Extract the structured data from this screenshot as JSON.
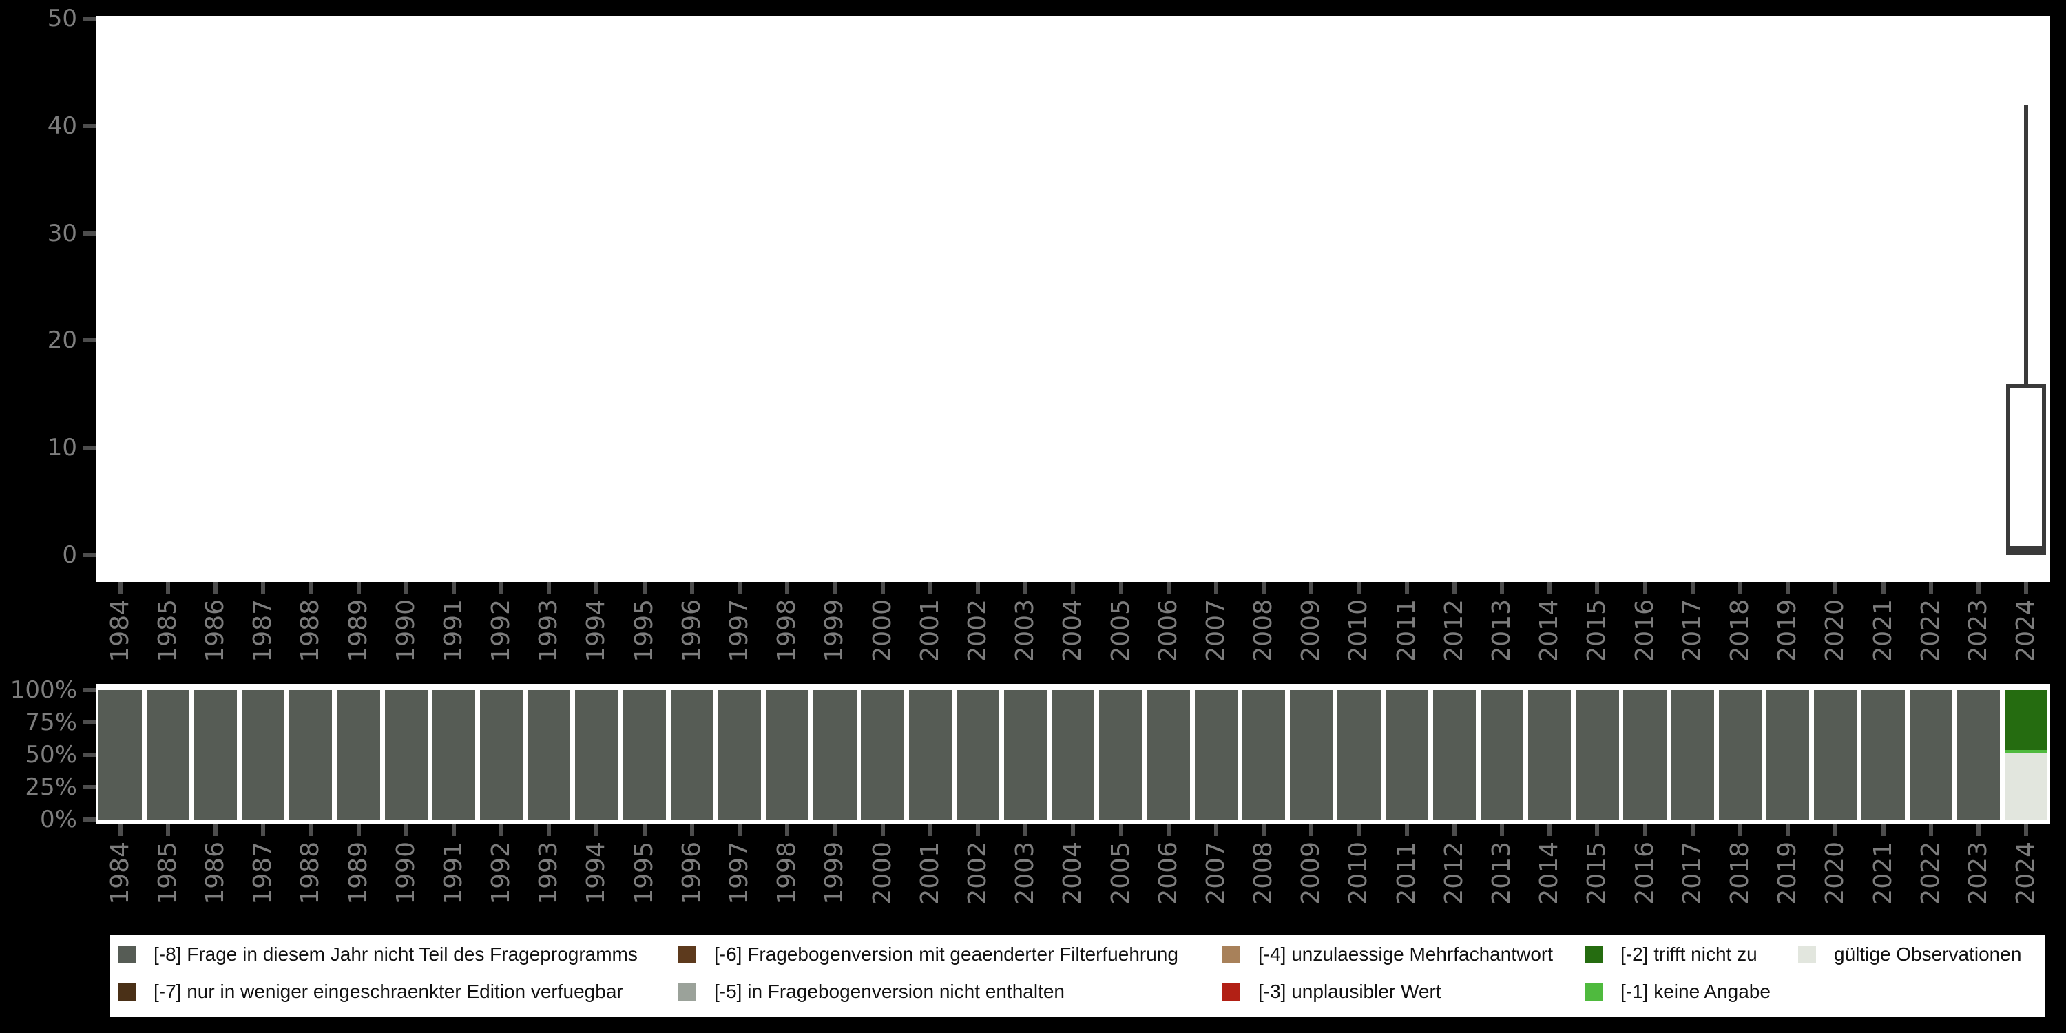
{
  "page": {
    "background": "#000000",
    "panel_background": "#ffffff"
  },
  "colors": {
    "-8": "#565c55",
    "-7": "#4a3017",
    "-6": "#5d3a1d",
    "-5": "#9ba29a",
    "-4": "#a8815a",
    "-3": "#b22015",
    "-2": "#256c10",
    "-1": "#4fba3e",
    "valid": "#e2e6de",
    "axis_label": "#7d7d7d",
    "tick_mark": "#4d4d4d",
    "box_stroke": "#3a3a3a"
  },
  "chart_data": [
    {
      "type": "boxplot",
      "title": "",
      "xlabel": "",
      "ylabel": "",
      "ylim": [
        0,
        50
      ],
      "yticks": [
        0,
        10,
        20,
        30,
        40,
        50
      ],
      "grid": false,
      "categories": [
        1984,
        1985,
        1986,
        1987,
        1988,
        1989,
        1990,
        1991,
        1992,
        1993,
        1994,
        1995,
        1996,
        1997,
        1998,
        1999,
        2000,
        2001,
        2002,
        2003,
        2004,
        2005,
        2006,
        2007,
        2008,
        2009,
        2010,
        2011,
        2012,
        2013,
        2014,
        2015,
        2016,
        2017,
        2018,
        2019,
        2020,
        2021,
        2022,
        2023,
        2024
      ],
      "boxes": [
        {
          "category": 2024,
          "min": 0,
          "q1": 0,
          "median": 0.5,
          "q3": 16,
          "max": 42
        }
      ]
    },
    {
      "type": "bar",
      "stacked": true,
      "unit": "percent",
      "title": "",
      "xlabel": "",
      "ylabel": "",
      "ylim": [
        0,
        100
      ],
      "yticks": [
        {
          "label": "0%",
          "value": 0
        },
        {
          "label": "25%",
          "value": 25
        },
        {
          "label": "50%",
          "value": 50
        },
        {
          "label": "75%",
          "value": 75
        },
        {
          "label": "100%",
          "value": 100
        }
      ],
      "categories": [
        1984,
        1985,
        1986,
        1987,
        1988,
        1989,
        1990,
        1991,
        1992,
        1993,
        1994,
        1995,
        1996,
        1997,
        1998,
        1999,
        2000,
        2001,
        2002,
        2003,
        2004,
        2005,
        2006,
        2007,
        2008,
        2009,
        2010,
        2011,
        2012,
        2013,
        2014,
        2015,
        2016,
        2017,
        2018,
        2019,
        2020,
        2021,
        2022,
        2023,
        2024
      ],
      "default_composition": [
        {
          "code": "-8",
          "pct": 100
        }
      ],
      "overrides": {
        "2024": [
          {
            "code": "-2",
            "pct": 46.5
          },
          {
            "code": "-1",
            "pct": 2.5
          },
          {
            "code": "valid",
            "pct": 51
          }
        ]
      }
    }
  ],
  "legend": {
    "columns": [
      {
        "items": [
          {
            "code": "-8",
            "label": "[-8] Frage in diesem Jahr nicht Teil des Frageprogramms"
          },
          {
            "code": "-7",
            "label": "[-7] nur in weniger eingeschraenkter Edition verfuegbar"
          }
        ]
      },
      {
        "items": [
          {
            "code": "-6",
            "label": "[-6] Fragebogenversion mit geaenderter Filterfuehrung"
          },
          {
            "code": "-5",
            "label": "[-5] in Fragebogenversion nicht enthalten"
          }
        ]
      },
      {
        "items": [
          {
            "code": "-4",
            "label": "[-4] unzulaessige Mehrfachantwort"
          },
          {
            "code": "-3",
            "label": "[-3] unplausibler Wert"
          }
        ]
      },
      {
        "items": [
          {
            "code": "-2",
            "label": "[-2] trifft nicht zu"
          },
          {
            "code": "-1",
            "label": "[-1] keine Angabe"
          }
        ]
      },
      {
        "items": [
          {
            "code": "valid",
            "label": "gültige Observationen"
          }
        ]
      }
    ]
  }
}
